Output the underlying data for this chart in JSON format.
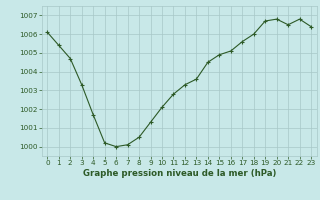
{
  "x": [
    0,
    1,
    2,
    3,
    4,
    5,
    6,
    7,
    8,
    9,
    10,
    11,
    12,
    13,
    14,
    15,
    16,
    17,
    18,
    19,
    20,
    21,
    22,
    23
  ],
  "y": [
    1006.1,
    1005.4,
    1004.7,
    1003.3,
    1001.7,
    1000.2,
    1000.0,
    1000.1,
    1000.5,
    1001.3,
    1002.1,
    1002.8,
    1003.3,
    1003.6,
    1004.5,
    1004.9,
    1005.1,
    1005.6,
    1006.0,
    1006.7,
    1006.8,
    1006.5,
    1006.8,
    1006.4
  ],
  "xlim": [
    -0.5,
    23.5
  ],
  "ylim": [
    999.5,
    1007.5
  ],
  "yticks": [
    1000,
    1001,
    1002,
    1003,
    1004,
    1005,
    1006,
    1007
  ],
  "xticks": [
    0,
    1,
    2,
    3,
    4,
    5,
    6,
    7,
    8,
    9,
    10,
    11,
    12,
    13,
    14,
    15,
    16,
    17,
    18,
    19,
    20,
    21,
    22,
    23
  ],
  "xlabel": "Graphe pression niveau de la mer (hPa)",
  "line_color": "#2d5a27",
  "marker": "+",
  "bg_color": "#c8e8e8",
  "grid_color": "#a8c8c8",
  "tick_color": "#2d5a27",
  "xlabel_color": "#2d5a27",
  "tick_fontsize": 5.2,
  "xlabel_fontsize": 6.2,
  "linewidth": 0.8,
  "markersize": 3.5,
  "markeredgewidth": 0.8
}
